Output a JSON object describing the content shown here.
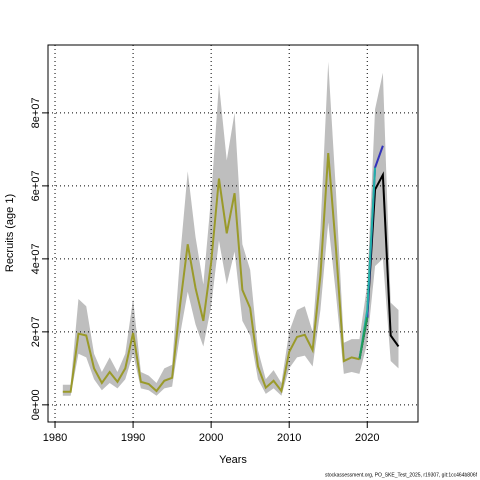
{
  "chart_data": {
    "type": "line",
    "xlabel": "Years",
    "ylabel": "Recruits (age 1)",
    "footnote": "stockassessment.org, PO_SKE_Test_2025, r19307, git:1cc464b806f",
    "x": [
      1981,
      1982,
      1983,
      1984,
      1985,
      1986,
      1987,
      1988,
      1989,
      1990,
      1991,
      1992,
      1993,
      1994,
      1995,
      1996,
      1997,
      1998,
      1999,
      2000,
      2001,
      2002,
      2003,
      2004,
      2005,
      2006,
      2007,
      2008,
      2009,
      2010,
      2011,
      2012,
      2013,
      2014,
      2015,
      2016,
      2017,
      2018,
      2019,
      2020,
      2021,
      2022,
      2023,
      2024
    ],
    "xlim": [
      1979.1,
      2026.5
    ],
    "xticks": [
      1980,
      1990,
      2000,
      2010,
      2020
    ],
    "ylim": [
      -4700000.0,
      98600000.0
    ],
    "yticks": [
      {
        "value": 0,
        "label": "0e+00"
      },
      {
        "value": 20000000.0,
        "label": "2e+07"
      },
      {
        "value": 40000000.0,
        "label": "4e+07"
      },
      {
        "value": 60000000.0,
        "label": "6e+07"
      },
      {
        "value": 80000000.0,
        "label": "8e+07"
      }
    ],
    "grid": true,
    "band": {
      "color": "#bebebe",
      "upper": [
        5500000.0,
        5500000.0,
        29000000.0,
        27000000.0,
        14000000.0,
        9000000.0,
        13000000.0,
        9000000.0,
        14000000.0,
        29000000.0,
        9000000.0,
        8000000.0,
        6000000.0,
        10000000.0,
        11000000.0,
        40000000.0,
        64000000.0,
        46000000.0,
        33000000.0,
        57000000.0,
        88000000.0,
        67000000.0,
        80000000.0,
        44000000.0,
        37000000.0,
        15000000.0,
        7000000.0,
        9500000.0,
        6000000.0,
        20000000.0,
        26000000.0,
        27000000.0,
        20000000.0,
        48000000.0,
        94000000.0,
        58000000.0,
        17000000.0,
        18000000.0,
        18000000.0,
        33000000.0,
        81000000.0,
        91000000.0,
        28000000.0,
        26000000.0
      ],
      "lower": [
        2500000.0,
        2500000.0,
        14000000.0,
        13000000.0,
        7000000.0,
        4000000.0,
        6000000.0,
        4500000.0,
        7000000.0,
        14000000.0,
        4500000.0,
        4000000.0,
        2500000.0,
        4500000.0,
        5000000.0,
        19000000.0,
        31000000.0,
        22000000.0,
        16000000.0,
        27000000.0,
        45000000.0,
        33000000.0,
        42000000.0,
        23000000.0,
        19000000.0,
        7000000.0,
        3000000.0,
        4500000.0,
        2500000.0,
        10000000.0,
        13000000.0,
        13500000.0,
        10500000.0,
        26000000.0,
        50000000.0,
        30000000.0,
        8500000.0,
        9000000.0,
        8500000.0,
        17000000.0,
        38000000.0,
        40000000.0,
        12000000.0,
        10000000.0
      ]
    },
    "series": [
      {
        "color": "#000000",
        "values": [
          null,
          null,
          null,
          null,
          null,
          null,
          null,
          null,
          null,
          null,
          null,
          null,
          null,
          null,
          null,
          null,
          null,
          null,
          null,
          null,
          null,
          null,
          null,
          null,
          null,
          null,
          null,
          null,
          null,
          null,
          null,
          null,
          null,
          null,
          null,
          null,
          null,
          null,
          12500000.0,
          24000000.0,
          59000000.0,
          63000000.0,
          19000000.0,
          16000000.0
        ]
      },
      {
        "color": "#3333bb",
        "values": [
          null,
          null,
          null,
          null,
          null,
          null,
          null,
          null,
          null,
          null,
          null,
          null,
          null,
          null,
          null,
          null,
          null,
          null,
          null,
          null,
          null,
          null,
          null,
          null,
          null,
          null,
          null,
          null,
          null,
          null,
          null,
          null,
          null,
          null,
          null,
          null,
          null,
          null,
          12500000.0,
          24000000.0,
          65000000.0,
          71000000.0,
          null,
          null
        ]
      },
      {
        "color": "#22b0a8",
        "values": [
          null,
          null,
          null,
          null,
          null,
          null,
          null,
          null,
          null,
          null,
          null,
          null,
          null,
          null,
          null,
          null,
          null,
          null,
          null,
          null,
          null,
          null,
          null,
          null,
          null,
          null,
          null,
          null,
          null,
          null,
          null,
          null,
          null,
          null,
          null,
          null,
          null,
          null,
          12500000.0,
          26000000.0,
          65000000.0,
          null,
          null,
          null
        ]
      },
      {
        "color": "#229955",
        "values": [
          null,
          null,
          null,
          null,
          null,
          null,
          null,
          null,
          null,
          null,
          null,
          null,
          null,
          null,
          null,
          null,
          null,
          null,
          null,
          null,
          null,
          null,
          null,
          null,
          null,
          null,
          null,
          null,
          null,
          null,
          null,
          null,
          null,
          null,
          null,
          null,
          null,
          null,
          12500000.0,
          24000000.0,
          null,
          null,
          null,
          null
        ]
      },
      {
        "color": "#9a9a2a",
        "values": [
          3600000.0,
          3600000.0,
          19500000.0,
          19000000.0,
          10000000.0,
          6000000.0,
          9000000.0,
          6300000.0,
          10000000.0,
          19700000.0,
          6300000.0,
          5700000.0,
          3800000.0,
          6600000.0,
          7400000.0,
          27000000.0,
          44000000.0,
          32000000.0,
          23000000.0,
          39000000.0,
          62000000.0,
          47000000.0,
          58000000.0,
          31500000.0,
          26500000.0,
          10500000.0,
          4700000.0,
          6600000.0,
          3800000.0,
          14500000.0,
          18600000.0,
          19200000.0,
          15000000.0,
          35500000.0,
          69000000.0,
          42500000.0,
          12000000.0,
          13000000.0,
          12500000.0,
          null,
          null,
          null,
          null,
          null
        ]
      }
    ]
  }
}
